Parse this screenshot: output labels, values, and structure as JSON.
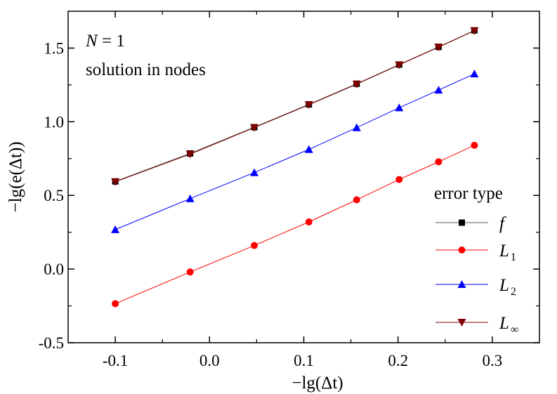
{
  "chart_data": {
    "type": "line",
    "title": "",
    "xlabel": "−lg(Δt)",
    "ylabel": "−lg(e(Δt))",
    "xlim": [
      -0.15,
      0.35
    ],
    "ylim": [
      -0.5,
      1.75
    ],
    "x_ticks": [
      -0.1,
      0.0,
      0.1,
      0.2,
      0.3
    ],
    "x_tick_labels": [
      "-0.1",
      "0.0",
      "0.1",
      "0.2",
      "0.3"
    ],
    "y_ticks": [
      -0.5,
      0.0,
      0.5,
      1.0,
      1.5
    ],
    "y_tick_labels": [
      "-0.5",
      "0.0",
      "0.5",
      "1.0",
      "1.5"
    ],
    "grid": false,
    "legend_placement": "bottom-right",
    "legend_title": "error type",
    "x": [
      -0.1,
      -0.0206,
      0.0475,
      0.1054,
      0.1561,
      0.2012,
      0.243,
      0.281
    ],
    "series": [
      {
        "name": "f",
        "name_main": "f",
        "name_sub": "",
        "marker": "square",
        "color": "#000000",
        "line_color": "#555555",
        "values": [
          0.595,
          0.785,
          0.963,
          1.118,
          1.258,
          1.388,
          1.508,
          1.62
        ]
      },
      {
        "name": "L1",
        "name_main": "L",
        "name_sub": "1",
        "marker": "circle",
        "color": "#ff0000",
        "line_color": "#ff0000",
        "values": [
          -0.235,
          -0.02,
          0.16,
          0.32,
          0.47,
          0.608,
          0.728,
          0.84
        ]
      },
      {
        "name": "L2",
        "name_main": "L",
        "name_sub": "2",
        "marker": "triangle-up",
        "color": "#0000ff",
        "line_color": "#0000ff",
        "values": [
          0.268,
          0.478,
          0.655,
          0.812,
          0.96,
          1.095,
          1.215,
          1.325
        ]
      },
      {
        "name": "L∞",
        "name_main": "L",
        "name_sub": "∞",
        "marker": "triangle-down",
        "color": "#800000",
        "line_color": "#800000",
        "values": [
          0.592,
          0.78,
          0.96,
          1.115,
          1.255,
          1.386,
          1.506,
          1.618
        ]
      }
    ],
    "annotations": {
      "line1_var": "N",
      "line1_rest": " = 1",
      "line2": "solution in nodes"
    }
  }
}
